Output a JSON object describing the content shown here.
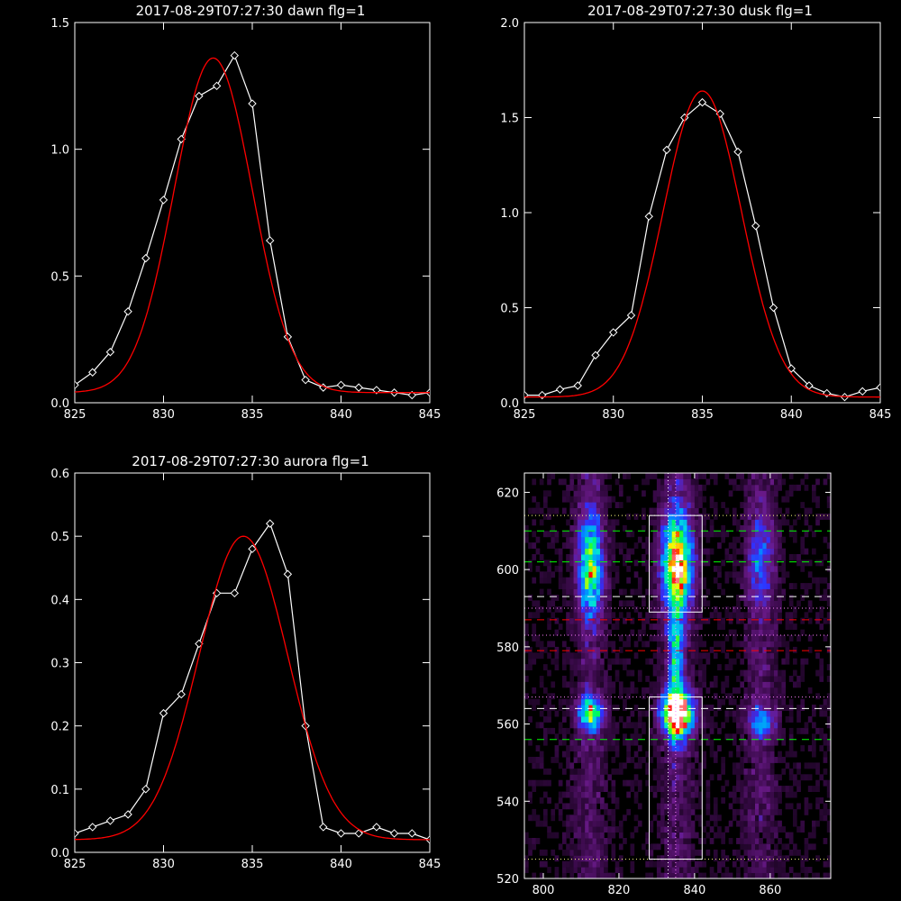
{
  "chart_data": [
    {
      "type": "line",
      "title": "2017-08-29T07:27:30 dawn flg=1",
      "xlim": [
        825,
        845
      ],
      "ylim": [
        0,
        1.5
      ],
      "xticks": [
        "825",
        "830",
        "835",
        "840",
        "845"
      ],
      "yticks": [
        "0.0",
        "0.5",
        "1.0",
        "1.5"
      ],
      "series": [
        {
          "style": "white-diamonds",
          "x": [
            825,
            826,
            827,
            828,
            829,
            830,
            831,
            832,
            833,
            834,
            835,
            836,
            837,
            838,
            839,
            840,
            841,
            842,
            843,
            844,
            845
          ],
          "y": [
            0.07,
            0.12,
            0.2,
            0.36,
            0.57,
            0.8,
            1.04,
            1.21,
            1.25,
            1.37,
            1.18,
            0.64,
            0.26,
            0.09,
            0.06,
            0.07,
            0.06,
            0.05,
            0.04,
            0.03,
            0.04
          ]
        },
        {
          "style": "red-fit",
          "gaussian": {
            "amp": 1.32,
            "center": 832.8,
            "sigma": 2.2,
            "offset": 0.04
          }
        }
      ]
    },
    {
      "type": "line",
      "title": "2017-08-29T07:27:30 dusk flg=1",
      "xlim": [
        825,
        845
      ],
      "ylim": [
        0,
        2.0
      ],
      "xticks": [
        "825",
        "830",
        "835",
        "840",
        "845"
      ],
      "yticks": [
        "0.0",
        "0.5",
        "1.0",
        "1.5",
        "2.0"
      ],
      "series": [
        {
          "style": "white-diamonds",
          "x": [
            825,
            826,
            827,
            828,
            829,
            830,
            831,
            832,
            833,
            834,
            835,
            836,
            837,
            838,
            839,
            840,
            841,
            842,
            843,
            844,
            845
          ],
          "y": [
            0.04,
            0.04,
            0.07,
            0.09,
            0.25,
            0.37,
            0.46,
            0.98,
            1.33,
            1.5,
            1.58,
            1.52,
            1.32,
            0.93,
            0.5,
            0.18,
            0.09,
            0.05,
            0.03,
            0.06,
            0.08
          ]
        },
        {
          "style": "red-fit",
          "gaussian": {
            "amp": 1.61,
            "center": 835.0,
            "sigma": 2.2,
            "offset": 0.03
          }
        }
      ]
    },
    {
      "type": "line",
      "title": "2017-08-29T07:27:30 aurora flg=1",
      "xlim": [
        825,
        845
      ],
      "ylim": [
        0,
        0.6
      ],
      "xticks": [
        "825",
        "830",
        "835",
        "840",
        "845"
      ],
      "yticks": [
        "0.0",
        "0.1",
        "0.2",
        "0.3",
        "0.4",
        "0.5",
        "0.6"
      ],
      "series": [
        {
          "style": "white-diamonds",
          "x": [
            825,
            826,
            827,
            828,
            829,
            830,
            831,
            832,
            833,
            834,
            835,
            836,
            837,
            838,
            839,
            840,
            841,
            842,
            843,
            844,
            845
          ],
          "y": [
            0.03,
            0.04,
            0.05,
            0.06,
            0.1,
            0.22,
            0.25,
            0.33,
            0.41,
            0.41,
            0.48,
            0.52,
            0.44,
            0.2,
            0.04,
            0.03,
            0.03,
            0.04,
            0.03,
            0.03,
            0.02
          ]
        },
        {
          "style": "red-fit",
          "gaussian": {
            "amp": 0.48,
            "center": 834.5,
            "sigma": 2.5,
            "offset": 0.02
          }
        }
      ]
    },
    {
      "type": "heatmap",
      "title": "",
      "xlim": [
        795,
        876
      ],
      "ylim": [
        520,
        625
      ],
      "xticks": [
        "800",
        "820",
        "840",
        "860"
      ],
      "yticks": [
        "520",
        "540",
        "560",
        "580",
        "600",
        "620"
      ],
      "colormap": [
        "#000000",
        "#3a0a4a",
        "#6a1a8a",
        "#3030ff",
        "#0090ff",
        "#00e0e0",
        "#00ff40",
        "#ffff00",
        "#ff0000",
        "#ffffff"
      ],
      "blobs": [
        {
          "x": 812,
          "y": 600,
          "sx": 2.2,
          "sy": 9,
          "amp": 0.55
        },
        {
          "x": 812,
          "y": 562,
          "sx": 2.2,
          "sy": 3,
          "amp": 0.6
        },
        {
          "x": 835,
          "y": 601,
          "sx": 2.8,
          "sy": 9,
          "amp": 0.75
        },
        {
          "x": 834.5,
          "y": 575,
          "sx": 1.2,
          "sy": 12,
          "amp": 0.45
        },
        {
          "x": 835,
          "y": 562,
          "sx": 2.8,
          "sy": 4,
          "amp": 1.0
        },
        {
          "x": 857,
          "y": 601,
          "sx": 2.5,
          "sy": 8,
          "amp": 0.22
        },
        {
          "x": 857,
          "y": 560,
          "sx": 2.5,
          "sy": 3,
          "amp": 0.3
        }
      ],
      "boxes": [
        {
          "x0": 828,
          "x1": 842,
          "y0": 589,
          "y1": 614
        },
        {
          "x0": 828,
          "x1": 842,
          "y0": 525,
          "y1": 567
        }
      ],
      "vlines": [
        {
          "x": 833,
          "color": "#ffffff",
          "dash": "dotted"
        },
        {
          "x": 835,
          "color": "#ff80ff",
          "dash": "dotted"
        }
      ],
      "hlines": [
        {
          "y": 610,
          "color": "#00ff00",
          "dash": "dashed"
        },
        {
          "y": 602,
          "color": "#00ff00",
          "dash": "dashed"
        },
        {
          "y": 593,
          "color": "#ffffff",
          "dash": "dashed"
        },
        {
          "y": 587,
          "color": "#ff0000",
          "dash": "dashed"
        },
        {
          "y": 579,
          "color": "#ff0000",
          "dash": "dashed"
        },
        {
          "y": 564,
          "color": "#ffffff",
          "dash": "dashed"
        },
        {
          "y": 556,
          "color": "#00ff00",
          "dash": "dashed"
        },
        {
          "y": 614,
          "color": "#ffff80",
          "dash": "dotted"
        },
        {
          "y": 590,
          "color": "#ff80ff",
          "dash": "dotted"
        },
        {
          "y": 583,
          "color": "#ff80ff",
          "dash": "dotted"
        },
        {
          "y": 567,
          "color": "#ff80ff",
          "dash": "dotted"
        },
        {
          "y": 525,
          "color": "#ffff80",
          "dash": "dotted"
        }
      ]
    }
  ]
}
